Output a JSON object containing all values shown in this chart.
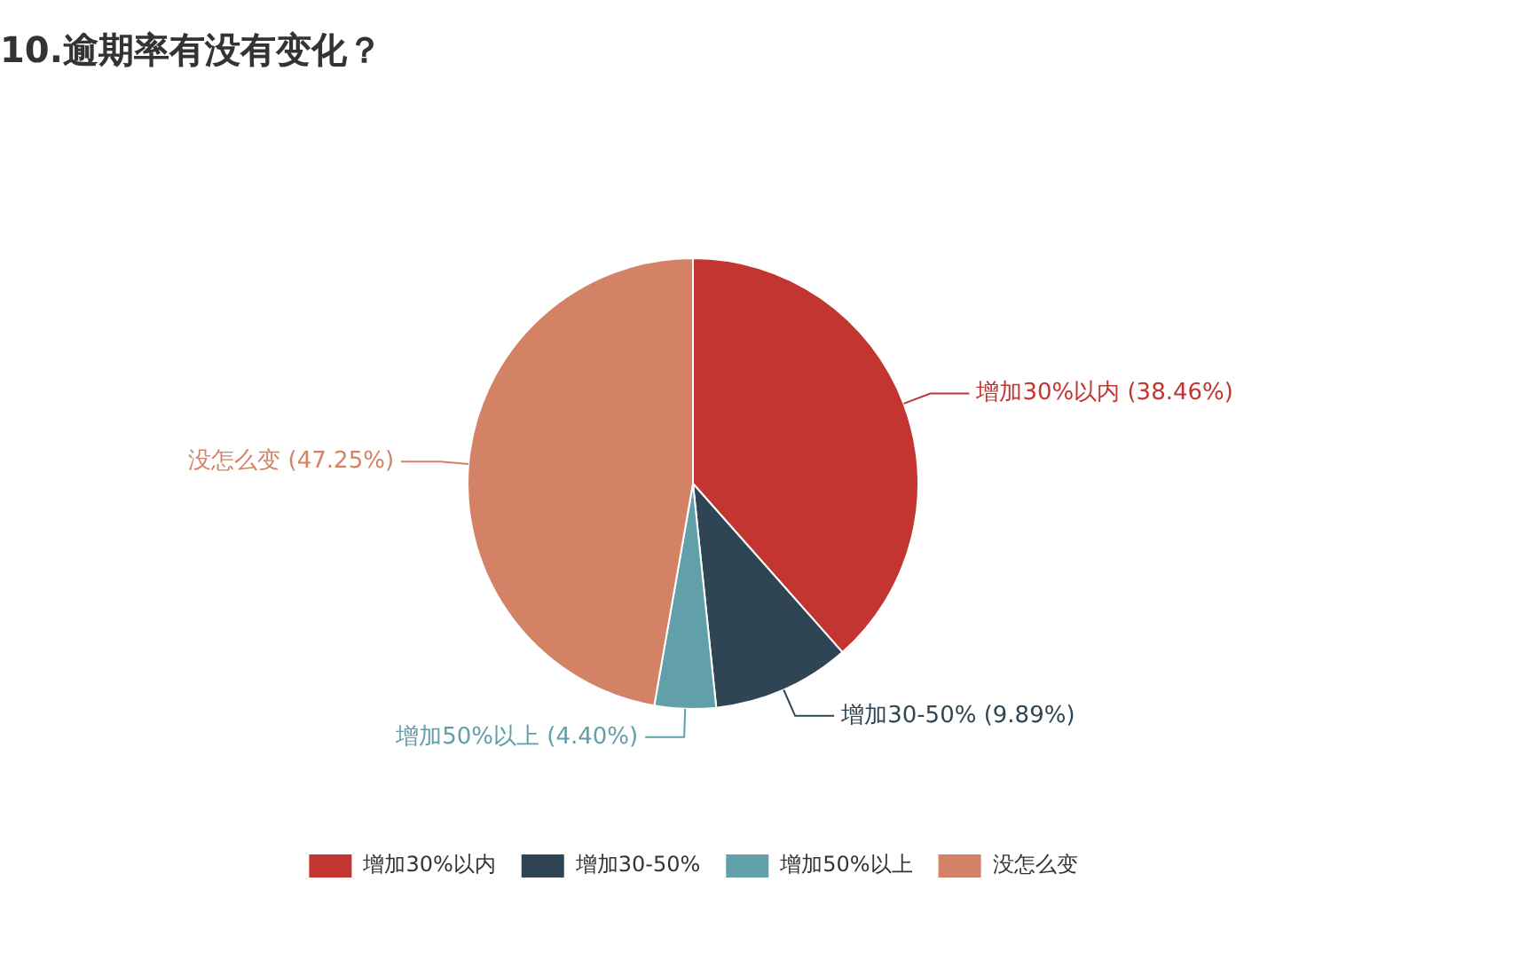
{
  "chart_data": {
    "type": "pie",
    "title": "10.逾期率有没有变化？",
    "categories": [
      "增加30%以内",
      "增加30-50%",
      "增加50%以上",
      "没怎么变"
    ],
    "values": [
      38.46,
      9.89,
      4.4,
      47.25
    ],
    "value_labels": [
      "(38.46%)",
      "(9.89%)",
      "(4.40%)",
      "(47.25%)"
    ],
    "colors": [
      "#c23531",
      "#2f4554",
      "#61a0a8",
      "#d48265"
    ],
    "legend": "bottom"
  }
}
